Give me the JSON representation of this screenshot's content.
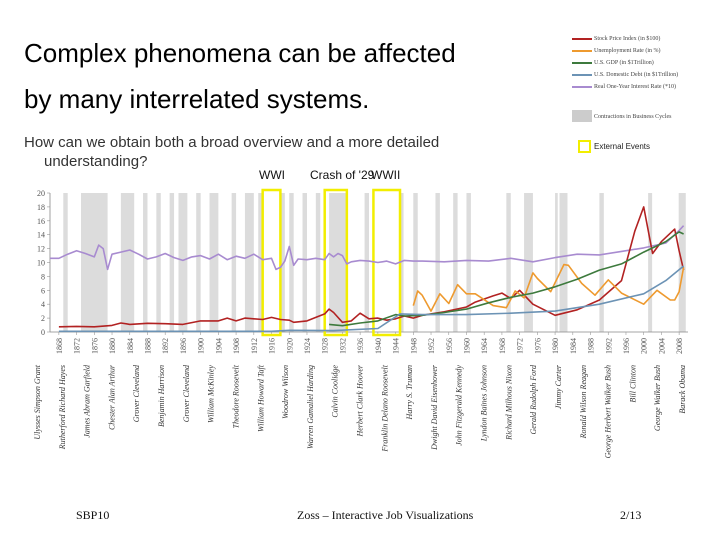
{
  "slide": {
    "title_line1": "Complex phenomena can be affected",
    "title_line2": "by many interrelated systems.",
    "subtitle_line1": "How can we obtain both a broad overview and a more detailed",
    "subtitle_line2": "understanding?",
    "footer_left": "SBP10",
    "footer_center": "Zoss – Interactive Job Visualizations",
    "footer_right": "2/13"
  },
  "events": [
    {
      "label": "WWI",
      "start": 1914,
      "end": 1918
    },
    {
      "label": "Crash of '29",
      "start": 1928,
      "end": 1933
    },
    {
      "label": "WWII",
      "start": 1939,
      "end": 1945
    }
  ],
  "legend": {
    "external_events": "External Events",
    "contractions_label": "Contractions in Business Cycles"
  },
  "colors": {
    "stock": "#b22222",
    "unemployment": "#ee9a2f",
    "gdp": "#3d7a3d",
    "debt": "#6c93b5",
    "interest": "#a88bd0",
    "contraction": "#dcdcdc",
    "event_box": "#f2ee00"
  },
  "chart_data": {
    "type": "line",
    "title": "",
    "xlabel": "",
    "ylabel": "",
    "xlim": [
      1866,
      2010
    ],
    "ylim": [
      0,
      20
    ],
    "y_ticks": [
      "0",
      "2",
      "4",
      "6",
      "8",
      "10",
      "12",
      "14",
      "16",
      "18",
      "20"
    ],
    "x_ticks": [
      "1868",
      "1872",
      "1876",
      "1880",
      "1884",
      "1888",
      "1892",
      "1896",
      "1900",
      "1904",
      "1908",
      "1912",
      "1916",
      "1920",
      "1924",
      "1928",
      "1932",
      "1936",
      "1940",
      "1944",
      "1948",
      "1952",
      "1956",
      "1960",
      "1964",
      "1968",
      "1972",
      "1976",
      "1980",
      "1984",
      "1988",
      "1992",
      "1996",
      "2000",
      "2004",
      "2008"
    ],
    "presidents": [
      "Ulysses Simpson Grant",
      "Rutherford Richard Hayes",
      "James Abram Garfield",
      "Chester Alan Arthur",
      "Grover Cleveland",
      "Benjamin Harrison",
      "Grover Cleveland",
      "William McKinley",
      "Theodore Roosevelt",
      "William Howard Taft",
      "Woodrow Wilson",
      "Warren Gamaliel Harding",
      "Calvin Coolidge",
      "Herbert Clark Hoover",
      "Franklin Delano Roosevelt",
      "Harry S. Truman",
      "Dwight David Eisenhower",
      "John Fitzgerald Kennedy",
      "Lyndon Baines Johnson",
      "Richard Milhous Nixon",
      "Gerald Rudolph Ford",
      "Jimmy Carter",
      "Ronald Wilson Reagan",
      "George Herbert Walker Bush",
      "Bill Clinton",
      "George Walker Bush",
      "Barack Obama"
    ],
    "legend_entries": [
      {
        "name": "Stock Price Index (in $100)",
        "key": "stock"
      },
      {
        "name": "Unemployment Rate (in %)",
        "key": "unemployment"
      },
      {
        "name": "U.S. GDP (in $1Trillion)",
        "key": "gdp"
      },
      {
        "name": "U.S. Domestic Debt (in $1Trillion)",
        "key": "debt"
      },
      {
        "name": "Real One-Year Interest Rate (*10)",
        "key": "interest"
      }
    ],
    "contractions": [
      [
        1869,
        1870
      ],
      [
        1873,
        1879
      ],
      [
        1882,
        1885
      ],
      [
        1887,
        1888
      ],
      [
        1890,
        1891
      ],
      [
        1893,
        1894
      ],
      [
        1895,
        1897
      ],
      [
        1899,
        1900
      ],
      [
        1902,
        1904
      ],
      [
        1907,
        1908
      ],
      [
        1910,
        1912
      ],
      [
        1913,
        1914
      ],
      [
        1918,
        1919
      ],
      [
        1920,
        1921
      ],
      [
        1923,
        1924
      ],
      [
        1926,
        1927
      ],
      [
        1929,
        1933
      ],
      [
        1937,
        1938
      ],
      [
        1945,
        1945.8
      ],
      [
        1948,
        1949
      ],
      [
        1953,
        1954
      ],
      [
        1957,
        1958
      ],
      [
        1960,
        1961
      ],
      [
        1969,
        1970
      ],
      [
        1973,
        1975
      ],
      [
        1980,
        1980.6
      ],
      [
        1981,
        1982.8
      ],
      [
        1990,
        1991
      ],
      [
        2001,
        2001.9
      ],
      [
        2007.9,
        2009.5
      ]
    ],
    "series": [
      {
        "key": "interest",
        "x": [
          1866,
          1868,
          1870,
          1872,
          1874,
          1876,
          1877,
          1878,
          1879,
          1880,
          1882,
          1884,
          1886,
          1888,
          1890,
          1892,
          1894,
          1896,
          1898,
          1900,
          1902,
          1904,
          1906,
          1908,
          1910,
          1912,
          1914,
          1916,
          1917,
          1918,
          1919,
          1920,
          1921,
          1922,
          1924,
          1926,
          1928,
          1929,
          1930,
          1931,
          1932,
          1933,
          1934,
          1936,
          1938,
          1940,
          1942,
          1944,
          1946,
          1948,
          1950,
          1955,
          1960,
          1965,
          1970,
          1975,
          1980,
          1985,
          1990,
          1995,
          2000,
          2005,
          2008,
          2009
        ],
        "y": [
          10.6,
          10.6,
          11.2,
          11.7,
          11.3,
          10.8,
          12.5,
          12.0,
          9.0,
          11.2,
          11.5,
          11.8,
          11.2,
          10.5,
          10.8,
          11.3,
          10.7,
          10.3,
          10.8,
          11.0,
          10.5,
          11.2,
          10.4,
          10.9,
          10.6,
          11.2,
          10.4,
          10.6,
          9.0,
          9.3,
          10.2,
          12.3,
          9.6,
          10.5,
          10.4,
          10.6,
          10.4,
          11.3,
          10.8,
          11.3,
          11.0,
          9.8,
          10.1,
          10.3,
          10.2,
          10.0,
          10.2,
          9.8,
          10.3,
          10.2,
          10.2,
          10.1,
          10.3,
          10.2,
          10.6,
          10.1,
          10.7,
          11.2,
          11.1,
          11.6,
          12.1,
          12.8,
          14.6,
          15.3
        ]
      },
      {
        "key": "stock",
        "x": [
          1868,
          1872,
          1876,
          1880,
          1882,
          1884,
          1888,
          1892,
          1896,
          1900,
          1904,
          1906,
          1908,
          1910,
          1914,
          1916,
          1918,
          1920,
          1921,
          1924,
          1926,
          1928,
          1929,
          1930,
          1932,
          1934,
          1936,
          1938,
          1940,
          1942,
          1944,
          1946,
          1948,
          1950,
          1955,
          1960,
          1962,
          1966,
          1968,
          1970,
          1972,
          1975,
          1980,
          1985,
          1990,
          1995,
          1998,
          2000,
          2002,
          2004,
          2007,
          2008,
          2009
        ],
        "y": [
          0.75,
          0.8,
          0.75,
          0.95,
          1.3,
          1.1,
          1.25,
          1.2,
          1.1,
          1.6,
          1.6,
          2.0,
          1.6,
          2.0,
          1.8,
          2.1,
          1.8,
          1.7,
          1.4,
          1.6,
          2.1,
          2.6,
          3.3,
          2.8,
          1.4,
          1.6,
          2.7,
          1.9,
          2.0,
          1.7,
          1.9,
          2.3,
          2.0,
          2.4,
          2.9,
          3.6,
          4.3,
          5.2,
          5.6,
          4.8,
          6.0,
          4.0,
          2.4,
          3.2,
          4.6,
          7.4,
          14.5,
          18.0,
          11.3,
          13.0,
          14.8,
          11.7,
          8.9
        ]
      },
      {
        "key": "unemployment",
        "x": [
          1948,
          1949,
          1950,
          1952,
          1954,
          1956,
          1958,
          1960,
          1962,
          1966,
          1969,
          1971,
          1973,
          1975,
          1976,
          1979,
          1982,
          1983,
          1986,
          1989,
          1992,
          1995,
          2000,
          2003,
          2006,
          2007,
          2008,
          2009
        ],
        "y": [
          3.8,
          5.9,
          5.3,
          3.0,
          5.5,
          4.1,
          6.8,
          5.5,
          5.5,
          3.8,
          3.5,
          5.9,
          4.9,
          8.5,
          7.7,
          5.8,
          9.7,
          9.6,
          7.0,
          5.3,
          7.5,
          5.6,
          4.0,
          6.0,
          4.6,
          4.6,
          5.8,
          9.3
        ]
      },
      {
        "key": "gdp",
        "x": [
          1929,
          1932,
          1936,
          1940,
          1944,
          1946,
          1950,
          1955,
          1960,
          1965,
          1970,
          1975,
          1980,
          1985,
          1990,
          1995,
          2000,
          2005,
          2008,
          2009
        ],
        "y": [
          1.1,
          0.9,
          1.3,
          1.6,
          2.5,
          2.3,
          2.4,
          2.8,
          3.3,
          4.2,
          5.0,
          5.6,
          6.5,
          7.6,
          8.9,
          9.8,
          11.5,
          13.0,
          14.4,
          14.1
        ]
      },
      {
        "key": "debt",
        "x": [
          1868,
          1900,
          1916,
          1920,
          1930,
          1940,
          1945,
          1950,
          1960,
          1970,
          1980,
          1990,
          2000,
          2005,
          2009
        ],
        "y": [
          0.1,
          0.1,
          0.1,
          0.25,
          0.2,
          0.5,
          2.6,
          2.5,
          2.5,
          2.7,
          3.0,
          4.0,
          5.5,
          7.4,
          9.5
        ]
      }
    ]
  }
}
